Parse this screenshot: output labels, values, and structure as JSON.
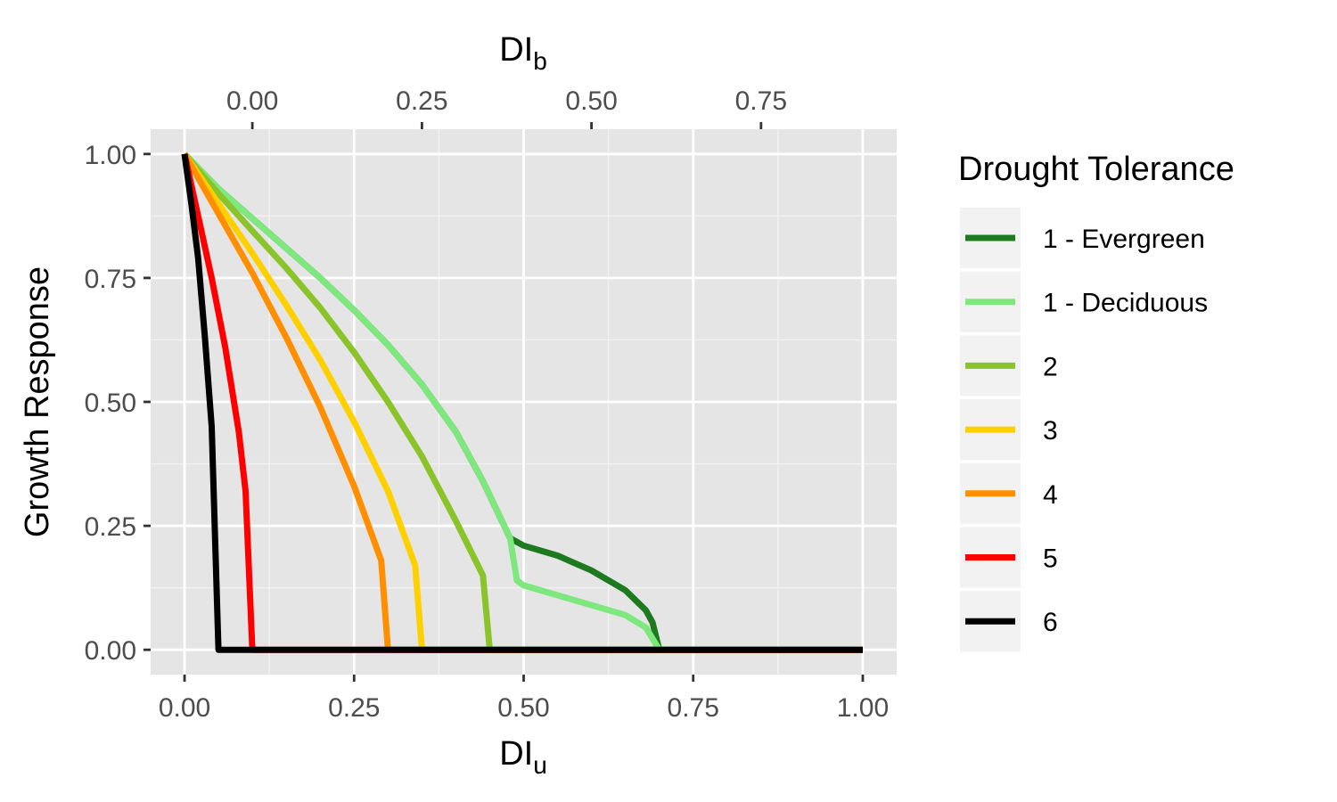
{
  "chart_data": {
    "type": "line",
    "x_axis_bottom": {
      "label_main": "DI",
      "label_sub": "u",
      "lim": [
        -0.05,
        1.05
      ],
      "ticks": [
        0.0,
        0.25,
        0.5,
        0.75,
        1.0
      ],
      "tick_labels": [
        "0.00",
        "0.25",
        "0.50",
        "0.75",
        "1.00"
      ]
    },
    "x_axis_top": {
      "label_main": "DI",
      "label_sub": "b",
      "ticks": [
        0.0,
        0.25,
        0.5,
        0.75
      ],
      "tick_labels": [
        "0.00",
        "0.25",
        "0.50",
        "0.75"
      ],
      "bottom_equivalent": [
        0.1,
        0.35,
        0.6,
        0.85
      ]
    },
    "y_axis": {
      "label": "Growth Response",
      "lim": [
        -0.05,
        1.05
      ],
      "ticks": [
        0.0,
        0.25,
        0.5,
        0.75,
        1.0
      ],
      "tick_labels": [
        "0.00",
        "0.25",
        "0.50",
        "0.75",
        "1.00"
      ]
    },
    "grid": true,
    "legend": {
      "title": "Drought Tolerance",
      "position": "right"
    },
    "series": [
      {
        "name": "1 - Evergreen",
        "color": "#1e7a1e",
        "points": [
          [
            0.0,
            1.0
          ],
          [
            0.05,
            0.93
          ],
          [
            0.1,
            0.87
          ],
          [
            0.15,
            0.81
          ],
          [
            0.2,
            0.75
          ],
          [
            0.25,
            0.685
          ],
          [
            0.3,
            0.615
          ],
          [
            0.35,
            0.535
          ],
          [
            0.4,
            0.44
          ],
          [
            0.44,
            0.34
          ],
          [
            0.48,
            0.225
          ],
          [
            0.5,
            0.21
          ],
          [
            0.55,
            0.19
          ],
          [
            0.6,
            0.16
          ],
          [
            0.65,
            0.12
          ],
          [
            0.68,
            0.08
          ],
          [
            0.69,
            0.055
          ],
          [
            0.7,
            0.0
          ],
          [
            1.0,
            0.0
          ]
        ]
      },
      {
        "name": "1 - Deciduous",
        "color": "#7ee87e",
        "points": [
          [
            0.0,
            1.0
          ],
          [
            0.05,
            0.93
          ],
          [
            0.1,
            0.87
          ],
          [
            0.15,
            0.81
          ],
          [
            0.2,
            0.75
          ],
          [
            0.25,
            0.685
          ],
          [
            0.3,
            0.615
          ],
          [
            0.35,
            0.535
          ],
          [
            0.4,
            0.44
          ],
          [
            0.44,
            0.34
          ],
          [
            0.48,
            0.225
          ],
          [
            0.49,
            0.14
          ],
          [
            0.5,
            0.13
          ],
          [
            0.55,
            0.11
          ],
          [
            0.6,
            0.09
          ],
          [
            0.65,
            0.07
          ],
          [
            0.68,
            0.045
          ],
          [
            0.7,
            0.0
          ],
          [
            1.0,
            0.0
          ]
        ]
      },
      {
        "name": "2",
        "color": "#8bc32a",
        "points": [
          [
            0.0,
            1.0
          ],
          [
            0.05,
            0.92
          ],
          [
            0.1,
            0.845
          ],
          [
            0.15,
            0.77
          ],
          [
            0.2,
            0.69
          ],
          [
            0.25,
            0.6
          ],
          [
            0.3,
            0.5
          ],
          [
            0.35,
            0.39
          ],
          [
            0.4,
            0.26
          ],
          [
            0.44,
            0.15
          ],
          [
            0.45,
            0.0
          ],
          [
            1.0,
            0.0
          ]
        ]
      },
      {
        "name": "3",
        "color": "#ffd000",
        "points": [
          [
            0.0,
            1.0
          ],
          [
            0.05,
            0.9
          ],
          [
            0.1,
            0.8
          ],
          [
            0.15,
            0.695
          ],
          [
            0.2,
            0.585
          ],
          [
            0.25,
            0.46
          ],
          [
            0.3,
            0.32
          ],
          [
            0.34,
            0.17
          ],
          [
            0.35,
            0.0
          ],
          [
            1.0,
            0.0
          ]
        ]
      },
      {
        "name": "4",
        "color": "#ff8f00",
        "points": [
          [
            0.0,
            1.0
          ],
          [
            0.05,
            0.88
          ],
          [
            0.1,
            0.76
          ],
          [
            0.15,
            0.63
          ],
          [
            0.2,
            0.49
          ],
          [
            0.25,
            0.33
          ],
          [
            0.29,
            0.18
          ],
          [
            0.3,
            0.0
          ],
          [
            1.0,
            0.0
          ]
        ]
      },
      {
        "name": "5",
        "color": "#ff0000",
        "points": [
          [
            0.0,
            1.0
          ],
          [
            0.02,
            0.875
          ],
          [
            0.04,
            0.75
          ],
          [
            0.06,
            0.61
          ],
          [
            0.08,
            0.44
          ],
          [
            0.09,
            0.32
          ],
          [
            0.1,
            0.0
          ],
          [
            1.0,
            0.0
          ]
        ]
      },
      {
        "name": "6",
        "color": "#000000",
        "points": [
          [
            0.0,
            1.0
          ],
          [
            0.01,
            0.9
          ],
          [
            0.02,
            0.79
          ],
          [
            0.03,
            0.63
          ],
          [
            0.04,
            0.45
          ],
          [
            0.05,
            0.0
          ],
          [
            1.0,
            0.0
          ]
        ]
      }
    ]
  }
}
